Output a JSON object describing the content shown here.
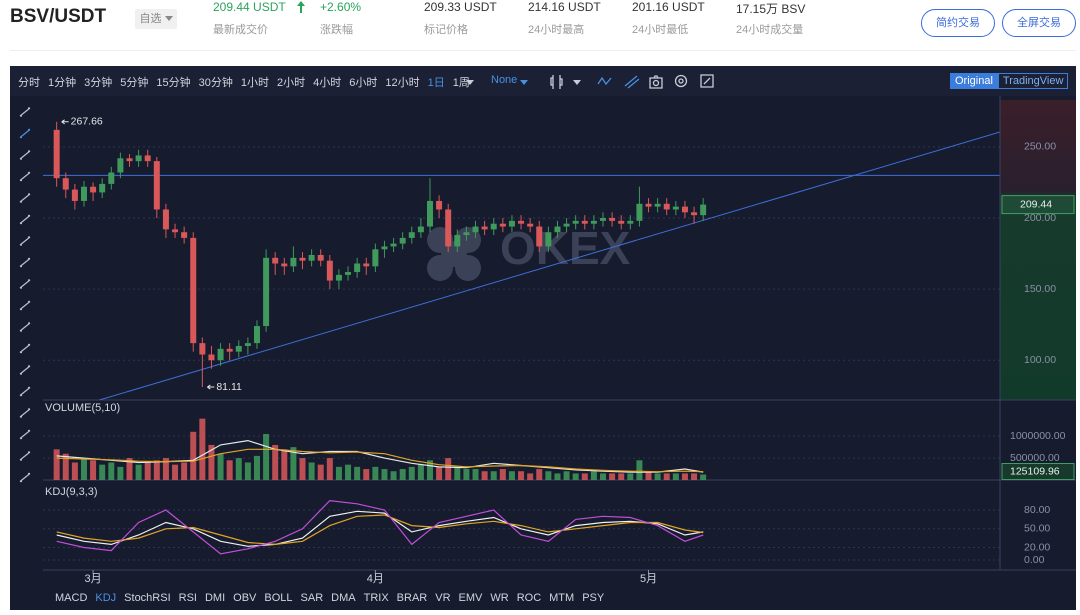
{
  "header": {
    "symbol": "BSV/USDT",
    "watch": "自选",
    "stats": [
      {
        "value": "209.44 USDT",
        "label": "最新成交价"
      },
      {
        "value": "+2.60%",
        "label": "涨跌幅"
      },
      {
        "value": "209.33 USDT",
        "label": "标记价格"
      },
      {
        "value": "214.16 USDT",
        "label": "24小时最高"
      },
      {
        "value": "201.16 USDT",
        "label": "24小时最低"
      },
      {
        "value": "17.15万 BSV",
        "label": "24小时成交量"
      }
    ],
    "buttons": [
      "简约交易",
      "全屏交易"
    ]
  },
  "toolbar": {
    "intervals": [
      "分时",
      "1分钟",
      "3分钟",
      "5分钟",
      "15分钟",
      "30分钟",
      "1小时",
      "2小时",
      "4小时",
      "6小时",
      "12小时",
      "1日",
      "1周"
    ],
    "active_interval": 11,
    "indicator_select": "None",
    "views": [
      "Original",
      "TradingView"
    ],
    "active_view": 0
  },
  "indicators": [
    "MACD",
    "KDJ",
    "StochRSI",
    "RSI",
    "DMI",
    "OBV",
    "BOLL",
    "SAR",
    "DMA",
    "TRIX",
    "BRAR",
    "VR",
    "EMV",
    "WR",
    "ROC",
    "MTM",
    "PSY"
  ],
  "active_indicator": 1,
  "watermark": "OKEX",
  "chart_data": [
    {
      "type": "candlestick",
      "up_color": "#3f9a5c",
      "down_color": "#d9585a",
      "grid": true,
      "xlim": [
        -1.5,
        103.6
      ],
      "ylim": [
        72,
        283
      ],
      "yticks": [
        {
          "value": 100,
          "label": "100.00"
        },
        {
          "value": 150,
          "label": "150.00"
        },
        {
          "value": 200,
          "label": "200.00"
        },
        {
          "value": 250,
          "label": "250.00"
        }
      ],
      "open": [
        262,
        228,
        220,
        212,
        222,
        218,
        224,
        232,
        242,
        240,
        244,
        240,
        206,
        192,
        190,
        186,
        112,
        104,
        100,
        108,
        106,
        110,
        112,
        124,
        172,
        168,
        166,
        172,
        170,
        174,
        170,
        156,
        160,
        162,
        168,
        166,
        178,
        180,
        182,
        186,
        190,
        194,
        212,
        206,
        180,
        188,
        190,
        194,
        192,
        196,
        194,
        198,
        196,
        194,
        180,
        190,
        194,
        196,
        198,
        196,
        198,
        200,
        198,
        196,
        198,
        210,
        208,
        210,
        206,
        208,
        204,
        202
      ],
      "high": [
        267.66,
        232,
        224,
        226,
        225,
        228,
        236,
        246,
        245,
        248,
        248,
        243,
        210,
        196,
        194,
        190,
        116,
        110,
        112,
        112,
        114,
        116,
        128,
        178,
        176,
        172,
        180,
        176,
        178,
        178,
        174,
        164,
        166,
        172,
        172,
        182,
        184,
        186,
        190,
        194,
        200,
        228,
        216,
        210,
        192,
        194,
        198,
        198,
        200,
        200,
        202,
        202,
        200,
        198,
        194,
        198,
        200,
        202,
        202,
        202,
        204,
        204,
        202,
        202,
        222,
        214,
        214,
        214,
        212,
        212,
        208,
        214
      ],
      "low": [
        222,
        214,
        206,
        208,
        212,
        214,
        220,
        228,
        236,
        236,
        236,
        200,
        186,
        186,
        182,
        106,
        81.11,
        94,
        96,
        100,
        102,
        104,
        108,
        120,
        160,
        160,
        162,
        164,
        166,
        166,
        150,
        150,
        156,
        158,
        160,
        162,
        172,
        176,
        178,
        182,
        186,
        190,
        200,
        176,
        176,
        184,
        186,
        188,
        188,
        190,
        190,
        192,
        190,
        176,
        176,
        186,
        190,
        192,
        192,
        192,
        194,
        194,
        192,
        192,
        194,
        204,
        204,
        202,
        202,
        200,
        196,
        198
      ],
      "close": [
        228,
        220,
        212,
        222,
        218,
        224,
        232,
        242,
        240,
        244,
        240,
        206,
        192,
        190,
        186,
        112,
        104,
        100,
        108,
        106,
        110,
        112,
        124,
        172,
        168,
        166,
        172,
        170,
        174,
        170,
        156,
        160,
        162,
        168,
        166,
        178,
        180,
        182,
        186,
        190,
        194,
        212,
        206,
        180,
        188,
        190,
        194,
        192,
        196,
        194,
        198,
        196,
        194,
        180,
        190,
        194,
        196,
        198,
        196,
        198,
        200,
        198,
        196,
        198,
        210,
        208,
        210,
        206,
        208,
        204,
        202,
        209.44
      ],
      "hline": 230,
      "trendline": {
        "x": [
          4.7,
          103.6
        ],
        "values": [
          72,
          260.5
        ]
      }
    },
    {
      "type": "bar",
      "title": "VOLUME(5,10)",
      "grid": true,
      "xlim": [
        -1.5,
        103.6
      ],
      "ylim": [
        0,
        1780000
      ],
      "yticks": [
        {
          "value": 500000,
          "label": "500000.00"
        },
        {
          "value": 1000000,
          "label": "1000000.00"
        }
      ],
      "values": [
        700000,
        600000,
        400000,
        500000,
        450000,
        350000,
        400000,
        300000,
        500000,
        350000,
        400000,
        450000,
        500000,
        350000,
        400000,
        1100000,
        1400000,
        800000,
        600000,
        450000,
        500000,
        400000,
        550000,
        1050000,
        800000,
        700000,
        750000,
        500000,
        400000,
        350000,
        500000,
        300000,
        350000,
        300000,
        250000,
        300000,
        250000,
        200000,
        250000,
        300000,
        350000,
        450000,
        300000,
        500000,
        300000,
        250000,
        250000,
        200000,
        200000,
        250000,
        200000,
        200000,
        150000,
        250000,
        200000,
        150000,
        200000,
        150000,
        150000,
        200000,
        150000,
        150000,
        150000,
        150000,
        450000,
        200000,
        150000,
        150000,
        150000,
        150000,
        150000,
        125109.96
      ],
      "series": [
        {
          "color": "#e8e8e8",
          "x": [
            0,
            3,
            6,
            9,
            12,
            15,
            18,
            21,
            24,
            27,
            30,
            33,
            36,
            39,
            42,
            45,
            48,
            51,
            54,
            57,
            60,
            63,
            66,
            69,
            71
          ],
          "values": [
            550000,
            500000,
            450000,
            400000,
            420000,
            450000,
            800000,
            900000,
            700000,
            600000,
            650000,
            650000,
            500000,
            380000,
            300000,
            280000,
            380000,
            330000,
            280000,
            230000,
            200000,
            180000,
            180000,
            250000,
            180000
          ]
        },
        {
          "color": "#e0a526",
          "x": [
            0,
            3,
            6,
            9,
            12,
            15,
            18,
            21,
            24,
            27,
            30,
            33,
            36,
            39,
            42,
            45,
            48,
            51,
            54,
            57,
            60,
            63,
            66,
            69,
            71
          ],
          "values": [
            500000,
            480000,
            460000,
            430000,
            420000,
            430000,
            600000,
            700000,
            700000,
            650000,
            620000,
            640000,
            600000,
            450000,
            350000,
            300000,
            320000,
            330000,
            300000,
            250000,
            220000,
            200000,
            190000,
            200000,
            190000
          ]
        }
      ]
    },
    {
      "type": "line",
      "title": "KDJ(9,3,3)",
      "grid": true,
      "xlim": [
        -1.5,
        103.6
      ],
      "ylim": [
        -16,
        120
      ],
      "yticks": [
        {
          "value": 0,
          "label": "0.00"
        },
        {
          "value": 20,
          "label": "20.00"
        },
        {
          "value": 50,
          "label": "50.00"
        },
        {
          "value": 80,
          "label": "80.00"
        }
      ],
      "xticks": [
        {
          "value": 4,
          "label": "3月"
        },
        {
          "value": 35,
          "label": "4月"
        },
        {
          "value": 65,
          "label": "5月"
        }
      ],
      "series": [
        {
          "color": "#f0f0f0",
          "x": [
            0,
            3,
            6,
            9,
            12,
            15,
            18,
            21,
            24,
            27,
            30,
            33,
            36,
            39,
            42,
            45,
            48,
            51,
            54,
            57,
            60,
            63,
            66,
            69,
            71
          ],
          "values": [
            40,
            30,
            25,
            40,
            60,
            50,
            30,
            22,
            25,
            35,
            70,
            78,
            75,
            45,
            55,
            62,
            68,
            50,
            40,
            55,
            60,
            62,
            58,
            40,
            45
          ]
        },
        {
          "color": "#e0a526",
          "x": [
            0,
            3,
            6,
            9,
            12,
            15,
            18,
            21,
            24,
            27,
            30,
            33,
            36,
            39,
            42,
            45,
            48,
            51,
            54,
            57,
            60,
            63,
            66,
            69,
            71
          ],
          "values": [
            45,
            35,
            30,
            35,
            50,
            52,
            40,
            28,
            25,
            30,
            55,
            70,
            72,
            55,
            52,
            58,
            62,
            55,
            45,
            50,
            55,
            60,
            60,
            48,
            44
          ]
        },
        {
          "color": "#c04fd8",
          "x": [
            0,
            3,
            6,
            9,
            12,
            15,
            18,
            21,
            24,
            27,
            30,
            33,
            36,
            39,
            42,
            45,
            48,
            51,
            54,
            57,
            60,
            63,
            66,
            69,
            71
          ],
          "values": [
            30,
            20,
            15,
            60,
            80,
            45,
            10,
            18,
            30,
            50,
            95,
            90,
            80,
            25,
            60,
            70,
            80,
            40,
            30,
            65,
            70,
            68,
            55,
            30,
            40
          ]
        }
      ]
    }
  ]
}
